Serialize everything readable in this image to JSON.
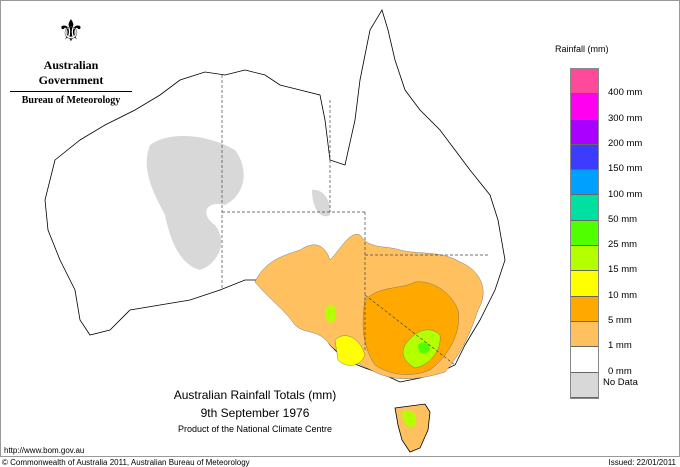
{
  "logo": {
    "emblem": "Commonwealth coat of arms",
    "government": "Australian Government",
    "bureau": "Bureau of Meteorology"
  },
  "title": {
    "line1": "Australian Rainfall Totals (mm)",
    "line2": "9th September 1976",
    "line3": "Product of the National Climate Centre"
  },
  "legend": {
    "title": "Rainfall (mm)",
    "colors": [
      "#ff4a9a",
      "#ff00f0",
      "#aa00ff",
      "#3c3cff",
      "#00a0ff",
      "#00e0a0",
      "#50ff00",
      "#b4ff00",
      "#ffff00",
      "#ffa800",
      "#ffc060",
      "#ffffff",
      "#d8d8d8"
    ],
    "labels": [
      "400 mm",
      "300 mm",
      "200 mm",
      "150 mm",
      "100 mm",
      "50 mm",
      "25 mm",
      "15 mm",
      "10 mm",
      "5 mm",
      "1 mm",
      "0 mm",
      "No Data"
    ]
  },
  "footer": {
    "url": "http://www.bom.gov.au",
    "copyright": "© Commonwealth of Australia 2011, Australian Bureau of Meteorology",
    "issued": "Issued: 22/01/2011"
  }
}
